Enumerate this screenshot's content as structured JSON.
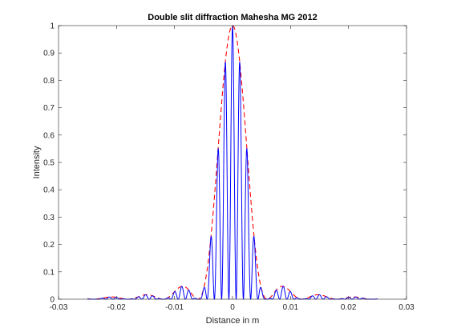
{
  "chart_data": {
    "type": "line",
    "title": "Double slit diffraction  Mahesha MG 2012",
    "xlabel": "Distance in m",
    "ylabel": "Intensity",
    "xlim": [
      -0.03,
      0.03
    ],
    "ylim": [
      0,
      1
    ],
    "x_ticks": [
      "-0.03",
      "-0.02",
      "-0.01",
      "0",
      "0.01",
      "0.02",
      "0.03"
    ],
    "y_ticks": [
      "0",
      "0.1",
      "0.2",
      "0.3",
      "0.4",
      "0.5",
      "0.6",
      "0.7",
      "0.8",
      "0.9",
      "1"
    ],
    "grid": false,
    "x_range_plotted": [
      -0.025,
      0.025
    ],
    "series": [
      {
        "style": "solid",
        "color": "#0000ff",
        "description_values": {
          "central_peak": 1.0,
          "fringe_spacing_m": 0.00125,
          "first_minimum_m": 0.006
        }
      },
      {
        "style": "dashed",
        "color": "#ff0000",
        "description_values": {
          "central_peak": 1.0,
          "first_minimum_m": 0.006
        }
      }
    ]
  }
}
